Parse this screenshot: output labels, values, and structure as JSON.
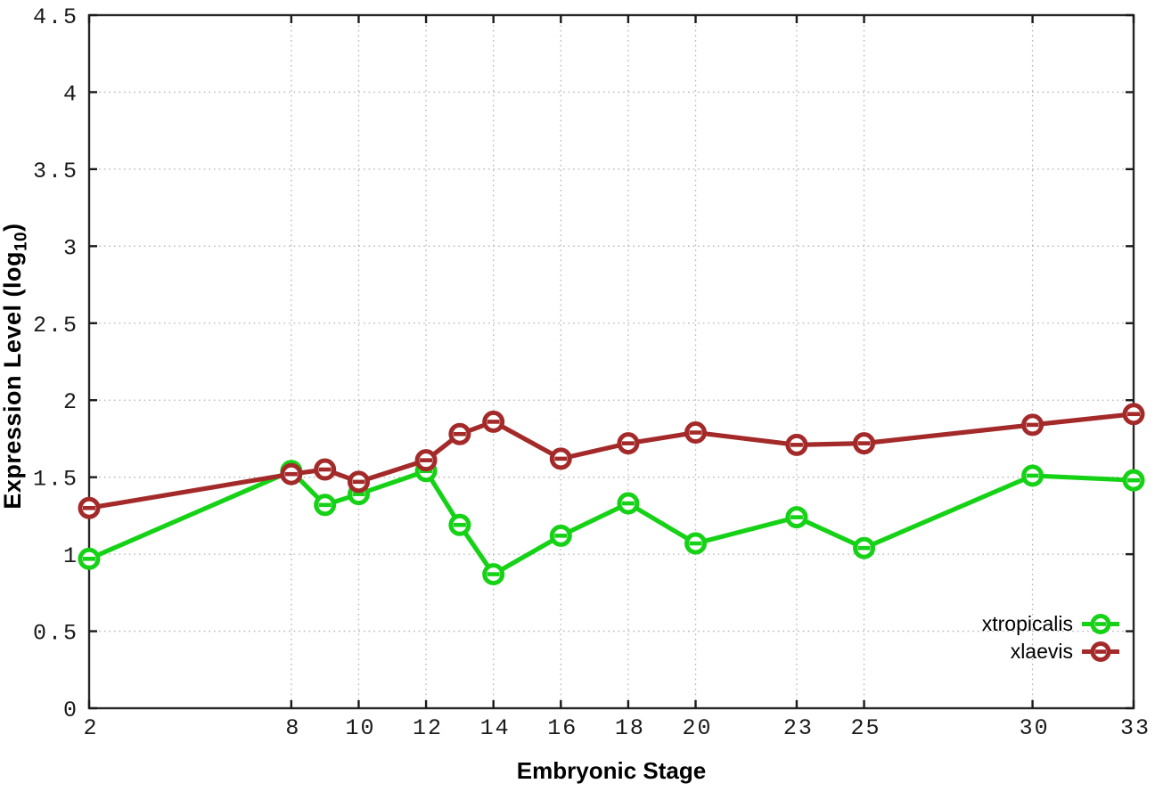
{
  "chart_data": {
    "type": "line",
    "title": "",
    "xlabel": "Embryonic Stage",
    "ylabel": "Expression Level (log10)",
    "ylabel_parts": {
      "prefix": "Expression Level (log",
      "sub": "10",
      "suffix": ")"
    },
    "x": [
      2,
      8,
      9,
      10,
      12,
      13,
      14,
      16,
      18,
      20,
      23,
      25,
      30,
      33
    ],
    "xticks": [
      2,
      8,
      10,
      12,
      14,
      16,
      18,
      20,
      23,
      25,
      30,
      33
    ],
    "yticks": [
      0,
      0.5,
      1,
      1.5,
      2,
      2.5,
      3,
      3.5,
      4,
      4.5
    ],
    "xlim": [
      2,
      33
    ],
    "ylim": [
      0,
      4.5
    ],
    "grid": true,
    "legend_position": "bottom-right",
    "series": [
      {
        "name": "xtropicalis",
        "color": "#16d216",
        "values": [
          0.97,
          1.54,
          1.32,
          1.39,
          1.54,
          1.19,
          0.87,
          1.12,
          1.33,
          1.07,
          1.24,
          1.04,
          1.51,
          1.48
        ]
      },
      {
        "name": "xlaevis",
        "color": "#a42a2a",
        "values": [
          1.3,
          1.52,
          1.55,
          1.47,
          1.61,
          1.78,
          1.86,
          1.62,
          1.72,
          1.79,
          1.71,
          1.72,
          1.84,
          1.91
        ]
      }
    ]
  },
  "style_colors": {
    "border": "#262626",
    "grid": "#b4b4b4",
    "tick": "#1a1a1a"
  }
}
